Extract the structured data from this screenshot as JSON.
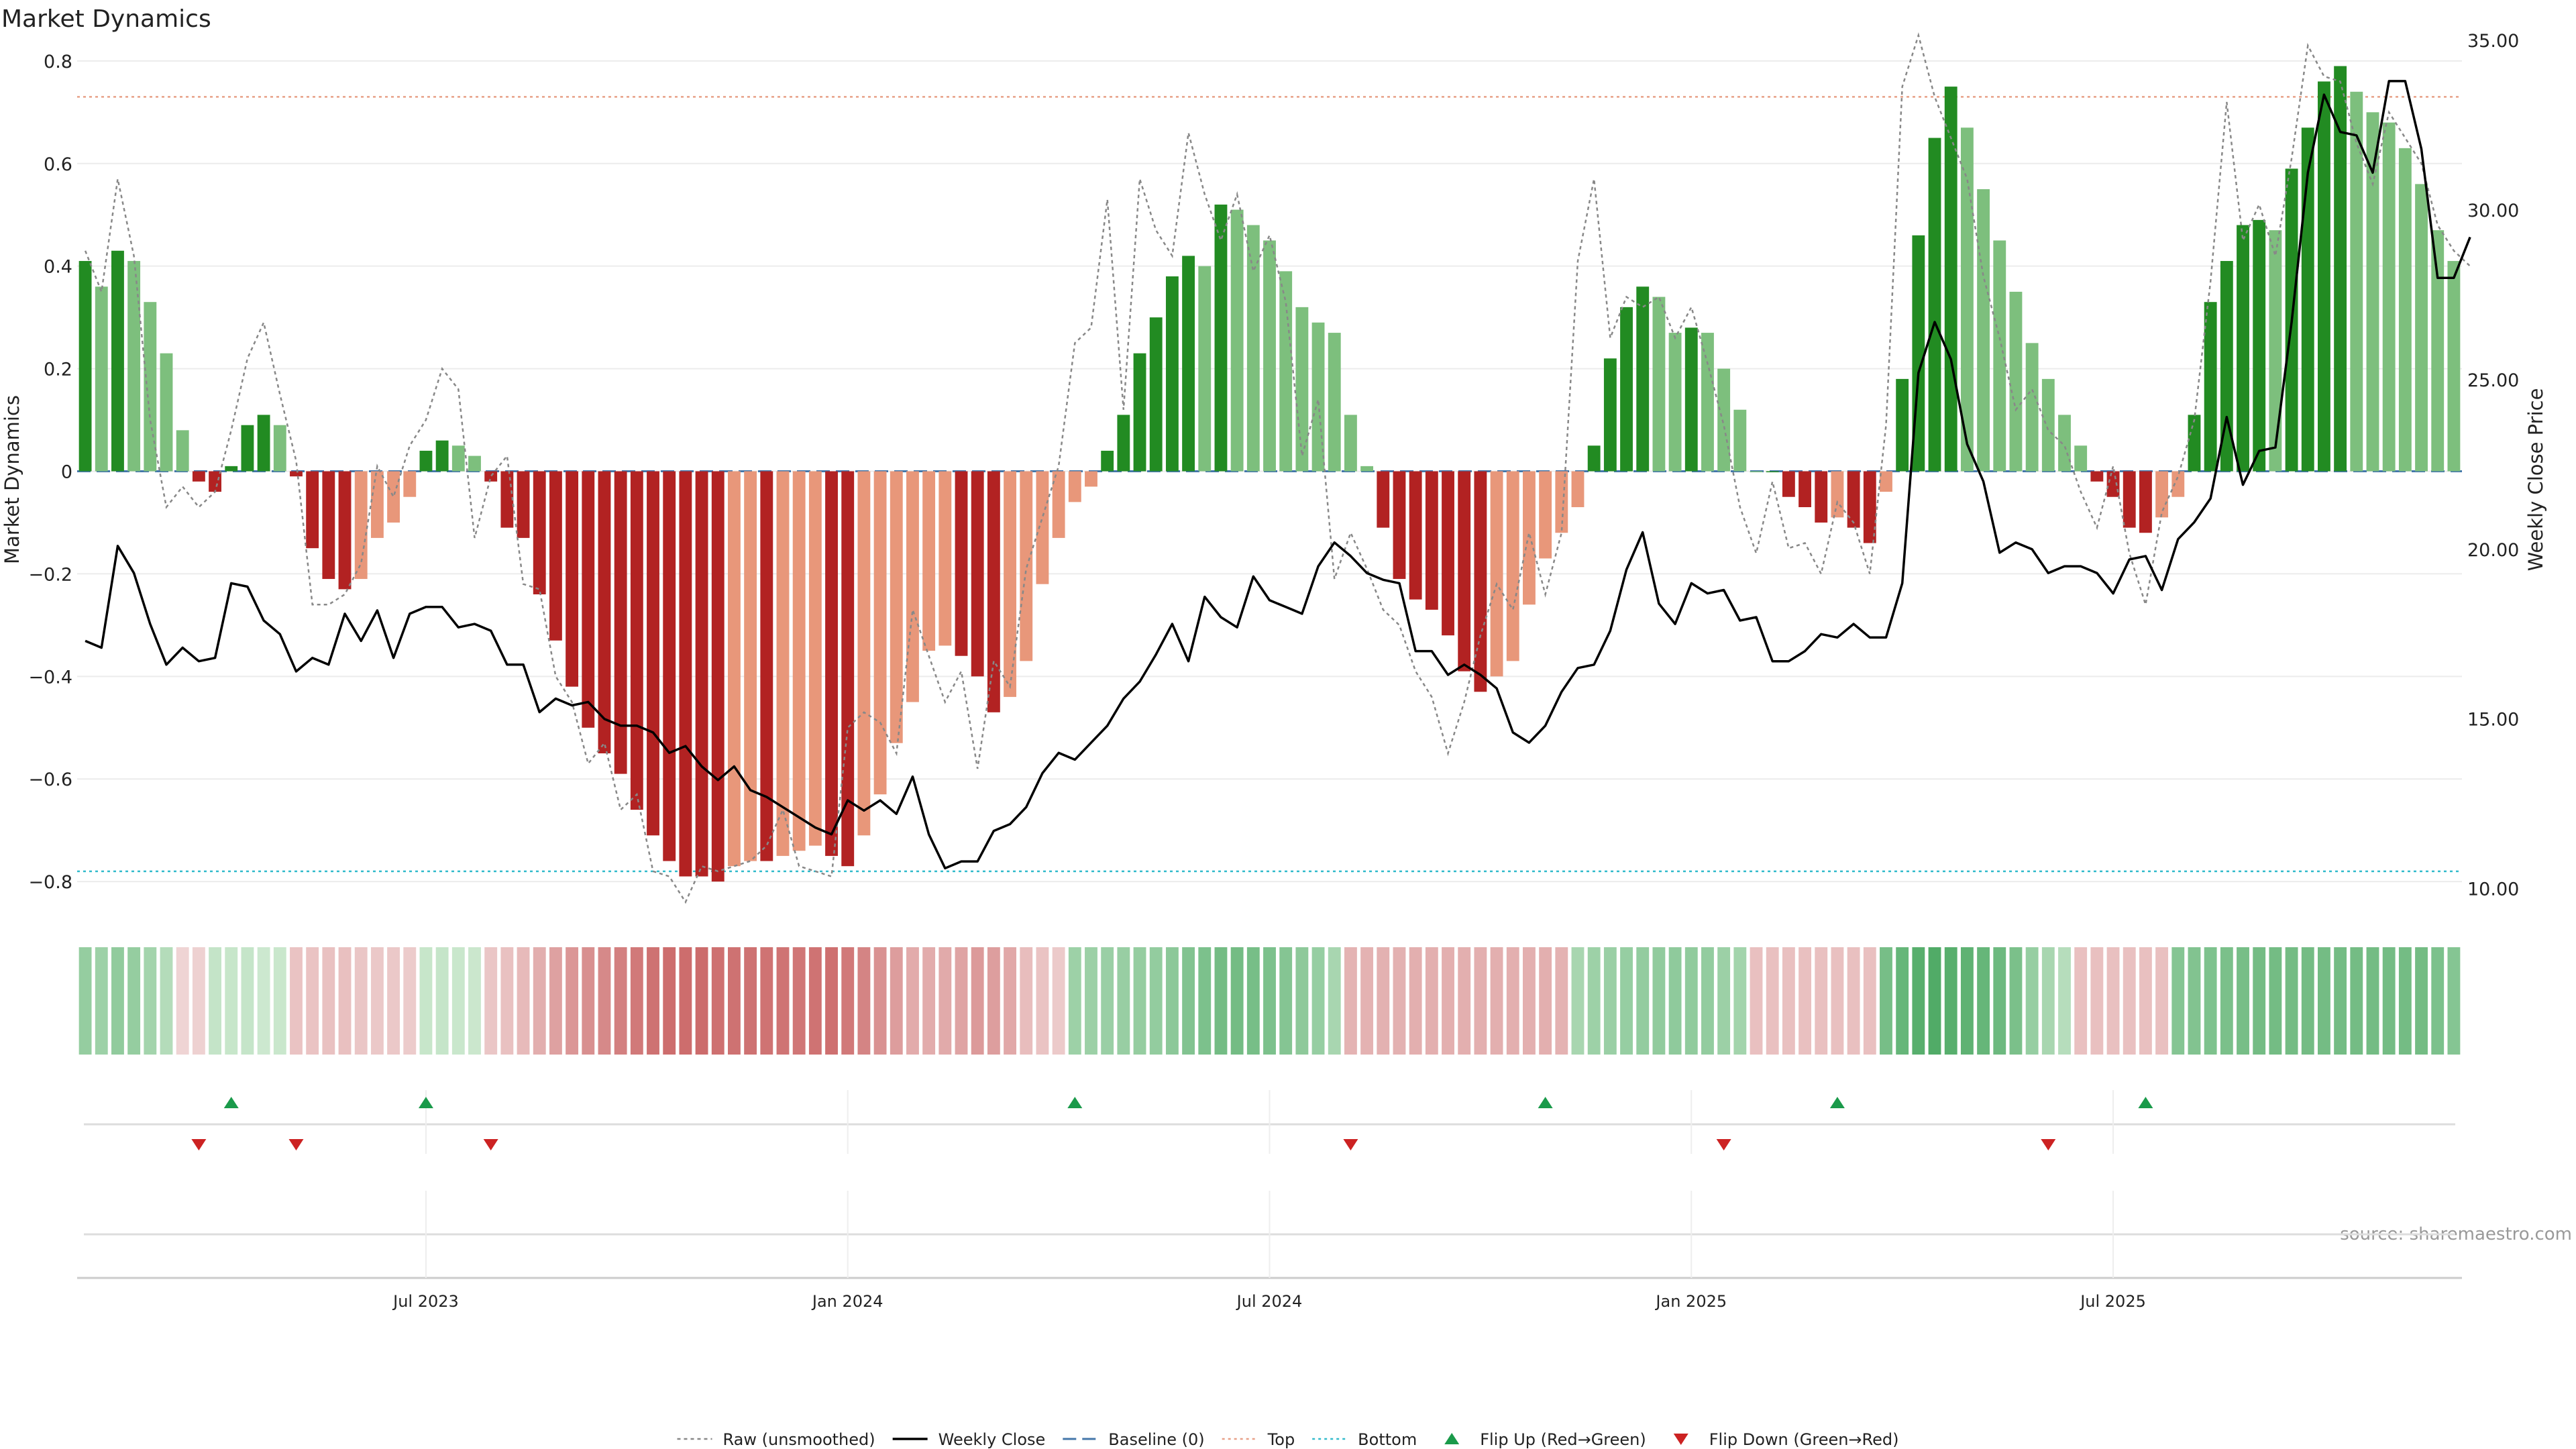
{
  "chart_data": {
    "type": "bar",
    "title": "Market Dynamics",
    "ylabel": "Market Dynamics",
    "y2label": "Weekly Close Price",
    "source": "source: sharemaestro.com",
    "ylim": [
      -0.86,
      0.86
    ],
    "y2lim": [
      9.3,
      35.3
    ],
    "yticks": [
      -0.8,
      -0.6,
      -0.4,
      -0.2,
      0,
      0.2,
      0.4,
      0.6,
      0.8
    ],
    "yticklabels": [
      "−0.8",
      "−0.6",
      "−0.4",
      "−0.2",
      "0",
      "0.2",
      "0.4",
      "0.6",
      "0.8"
    ],
    "y2ticks": [
      10,
      15,
      20,
      25,
      30,
      35
    ],
    "y2ticklabels": [
      "10.00",
      "15.00",
      "20.00",
      "25.00",
      "30.00",
      "35.00"
    ],
    "xticks": [
      {
        "idx": 21,
        "label": "Jul 2023"
      },
      {
        "idx": 47,
        "label": "Jan 2024"
      },
      {
        "idx": 73,
        "label": "Jul 2024"
      },
      {
        "idx": 99,
        "label": "Jan 2025"
      },
      {
        "idx": 125,
        "label": "Jul 2025"
      }
    ],
    "top_level": 0.73,
    "bottom_level": -0.78,
    "colors": {
      "pos_rising": "#228b22",
      "pos_falling": "#7dbf7d",
      "neg_falling": "#b22222",
      "neg_rising": "#e8977a",
      "price": "#000000",
      "raw": "#888888",
      "baseline": "#4477aa",
      "top": "#e8a088",
      "bottom": "#33bbcc",
      "flip_up": "#1a9a4a",
      "flip_down": "#cc2222"
    },
    "values": [
      0.41,
      0.36,
      0.43,
      0.41,
      0.33,
      0.23,
      0.08,
      -0.02,
      -0.04,
      0.01,
      0.09,
      0.11,
      0.09,
      -0.01,
      -0.15,
      -0.21,
      -0.23,
      -0.21,
      -0.13,
      -0.1,
      -0.05,
      0.04,
      0.06,
      0.05,
      0.03,
      -0.02,
      -0.11,
      -0.13,
      -0.24,
      -0.33,
      -0.42,
      -0.5,
      -0.55,
      -0.59,
      -0.66,
      -0.71,
      -0.76,
      -0.79,
      -0.79,
      -0.8,
      -0.77,
      -0.76,
      -0.76,
      -0.75,
      -0.74,
      -0.73,
      -0.75,
      -0.77,
      -0.71,
      -0.63,
      -0.53,
      -0.45,
      -0.35,
      -0.34,
      -0.36,
      -0.4,
      -0.47,
      -0.44,
      -0.37,
      -0.22,
      -0.13,
      -0.06,
      -0.03,
      0.04,
      0.11,
      0.23,
      0.3,
      0.38,
      0.42,
      0.4,
      0.52,
      0.51,
      0.48,
      0.45,
      0.39,
      0.32,
      0.29,
      0.27,
      0.11,
      0.01,
      -0.11,
      -0.21,
      -0.25,
      -0.27,
      -0.32,
      -0.39,
      -0.43,
      -0.4,
      -0.37,
      -0.26,
      -0.17,
      -0.12,
      -0.07,
      0.05,
      0.22,
      0.32,
      0.36,
      0.34,
      0.27,
      0.28,
      0.27,
      0.2,
      0.12,
      0,
      0,
      -0.05,
      -0.07,
      -0.1,
      -0.09,
      -0.11,
      -0.14,
      -0.04,
      0.18,
      0.46,
      0.65,
      0.75,
      0.67,
      0.55,
      0.45,
      0.35,
      0.25,
      0.18,
      0.11,
      0.05,
      -0.02,
      -0.05,
      -0.11,
      -0.12,
      -0.09,
      -0.05,
      0.11,
      0.33,
      0.41,
      0.48,
      0.49,
      0.47,
      0.59,
      0.67,
      0.76,
      0.79,
      0.74,
      0.7,
      0.68,
      0.63,
      0.56,
      0.47,
      0.41
    ],
    "price": [
      17.3,
      17.1,
      20.1,
      19.3,
      17.8,
      16.6,
      17.1,
      16.7,
      16.8,
      19.0,
      18.9,
      17.9,
      17.5,
      16.4,
      16.8,
      16.6,
      18.1,
      17.3,
      18.2,
      16.8,
      18.1,
      18.3,
      18.3,
      17.7,
      17.8,
      17.6,
      16.6,
      16.6,
      15.2,
      15.6,
      15.4,
      15.5,
      15.0,
      14.8,
      14.8,
      14.6,
      14.0,
      14.2,
      13.6,
      13.2,
      13.6,
      12.9,
      12.7,
      12.4,
      12.1,
      11.8,
      11.6,
      12.6,
      12.3,
      12.6,
      12.2,
      13.3,
      11.6,
      10.6,
      10.8,
      10.8,
      11.7,
      11.9,
      12.4,
      13.4,
      14.0,
      13.8,
      14.3,
      14.8,
      15.6,
      16.1,
      16.9,
      17.8,
      16.7,
      18.6,
      18.0,
      17.7,
      19.2,
      18.5,
      18.3,
      18.1,
      19.5,
      20.2,
      19.8,
      19.3,
      19.1,
      19.0,
      17.0,
      17.0,
      16.3,
      16.6,
      16.3,
      15.9,
      14.6,
      14.3,
      14.8,
      15.8,
      16.5,
      16.6,
      17.6,
      19.4,
      20.5,
      18.4,
      17.8,
      19.0,
      18.7,
      18.8,
      17.9,
      18.0,
      16.7,
      16.7,
      17.0,
      17.5,
      17.4,
      17.8,
      17.4,
      17.4,
      19.0,
      25.2,
      26.7,
      25.6,
      23.1,
      22.0,
      19.9,
      20.2,
      20.0,
      19.3,
      19.5,
      19.5,
      19.3,
      18.7,
      19.7,
      19.8,
      18.8,
      20.3,
      20.8,
      21.5,
      23.9,
      21.9,
      22.9,
      23.0,
      26.7,
      31.1,
      33.4,
      32.3,
      32.2,
      31.1,
      33.8,
      33.8,
      31.8,
      28.0,
      28.0,
      29.2
    ],
    "raw": [
      0.43,
      0.35,
      0.57,
      0.42,
      0.1,
      -0.07,
      -0.03,
      -0.07,
      -0.04,
      0.08,
      0.22,
      0.29,
      0.15,
      0.02,
      -0.26,
      -0.26,
      -0.24,
      -0.18,
      0.01,
      -0.05,
      0.05,
      0.1,
      0.2,
      0.16,
      -0.13,
      -0.01,
      0.03,
      -0.22,
      -0.23,
      -0.4,
      -0.45,
      -0.57,
      -0.53,
      -0.66,
      -0.63,
      -0.78,
      -0.79,
      -0.84,
      -0.77,
      -0.78,
      -0.77,
      -0.76,
      -0.73,
      -0.66,
      -0.77,
      -0.78,
      -0.79,
      -0.5,
      -0.47,
      -0.49,
      -0.55,
      -0.27,
      -0.36,
      -0.45,
      -0.39,
      -0.58,
      -0.37,
      -0.42,
      -0.19,
      -0.09,
      0.01,
      0.25,
      0.28,
      0.53,
      0.12,
      0.57,
      0.47,
      0.42,
      0.66,
      0.54,
      0.45,
      0.54,
      0.39,
      0.46,
      0.33,
      0.03,
      0.14,
      -0.21,
      -0.12,
      -0.19,
      -0.27,
      -0.3,
      -0.39,
      -0.44,
      -0.55,
      -0.45,
      -0.32,
      -0.22,
      -0.27,
      -0.12,
      -0.24,
      -0.12,
      0.41,
      0.57,
      0.26,
      0.34,
      0.32,
      0.34,
      0.26,
      0.32,
      0.21,
      0.09,
      -0.07,
      -0.16,
      -0.02,
      -0.15,
      -0.14,
      -0.2,
      -0.06,
      -0.1,
      -0.2,
      0.09,
      0.75,
      0.85,
      0.73,
      0.65,
      0.57,
      0.38,
      0.26,
      0.12,
      0.16,
      0.08,
      0.05,
      -0.04,
      -0.11,
      0.01,
      -0.16,
      -0.26,
      -0.08,
      -0.01,
      0.1,
      0.37,
      0.72,
      0.45,
      0.52,
      0.42,
      0.61,
      0.83,
      0.77,
      0.76,
      0.64,
      0.56,
      0.7,
      0.65,
      0.6,
      0.48,
      0.43,
      0.4
    ],
    "band_values": [
      0.41,
      0.36,
      0.43,
      0.41,
      0.33,
      0.23,
      -0.06,
      -0.08,
      0.14,
      0.12,
      0.13,
      0.09,
      0.11,
      -0.18,
      -0.18,
      -0.19,
      -0.2,
      -0.16,
      -0.14,
      -0.14,
      -0.12,
      0.12,
      0.13,
      0.11,
      0.1,
      -0.16,
      -0.19,
      -0.24,
      -0.33,
      -0.42,
      -0.5,
      -0.55,
      -0.59,
      -0.66,
      -0.71,
      -0.76,
      -0.79,
      -0.79,
      -0.8,
      -0.77,
      -0.76,
      -0.76,
      -0.75,
      -0.74,
      -0.73,
      -0.75,
      -0.77,
      -0.71,
      -0.63,
      -0.53,
      -0.45,
      -0.35,
      -0.34,
      -0.36,
      -0.4,
      -0.47,
      -0.44,
      -0.37,
      -0.22,
      -0.18,
      -0.13,
      0.36,
      0.37,
      0.38,
      0.39,
      0.41,
      0.42,
      0.46,
      0.52,
      0.55,
      0.6,
      0.6,
      0.58,
      0.55,
      0.5,
      0.45,
      0.4,
      0.3,
      -0.29,
      -0.3,
      -0.31,
      -0.31,
      -0.32,
      -0.32,
      -0.32,
      -0.32,
      -0.32,
      -0.32,
      -0.32,
      -0.32,
      -0.32,
      -0.3,
      0.3,
      0.36,
      0.38,
      0.4,
      0.42,
      0.43,
      0.44,
      0.43,
      0.42,
      0.37,
      0.33,
      -0.2,
      -0.2,
      -0.2,
      -0.2,
      -0.2,
      -0.2,
      -0.2,
      -0.2,
      0.58,
      0.68,
      0.76,
      0.8,
      0.76,
      0.72,
      0.68,
      0.64,
      0.56,
      0.4,
      0.3,
      0.22,
      -0.2,
      -0.2,
      -0.2,
      -0.2,
      -0.2,
      -0.2,
      0.5,
      0.52,
      0.54,
      0.56,
      0.58,
      0.6,
      0.6,
      0.6,
      0.6,
      0.6,
      0.6,
      0.6,
      0.6,
      0.6,
      0.6,
      0.6,
      0.55,
      0.5
    ],
    "flips_up": [
      9,
      21,
      61,
      90,
      108,
      127
    ],
    "flips_down": [
      7,
      13,
      25,
      78,
      101,
      121
    ],
    "legend": [
      {
        "key": "raw",
        "label": "Raw (unsmoothed)"
      },
      {
        "key": "price",
        "label": "Weekly Close"
      },
      {
        "key": "baseline",
        "label": "Baseline (0)"
      },
      {
        "key": "top",
        "label": "Top"
      },
      {
        "key": "bottom",
        "label": "Bottom"
      },
      {
        "key": "flip_up",
        "label": "Flip Up (Red→Green)"
      },
      {
        "key": "flip_down",
        "label": "Flip Down (Green→Red)"
      }
    ]
  }
}
